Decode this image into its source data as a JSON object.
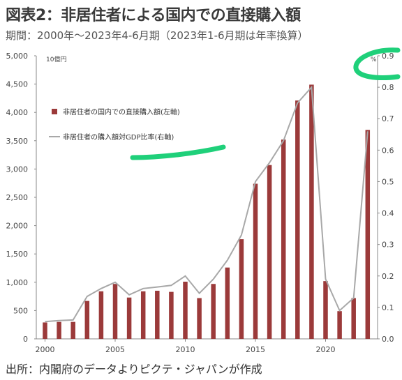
{
  "header": {
    "title": "図表2：非居住者による国内での直接購入額",
    "subtitle": "期間：2000年～2023年4-6月期（2023年1-6月期は年率換算）"
  },
  "footer": {
    "source": "出所：内閣府のデータよりピクテ・ジャパンが作成"
  },
  "colors": {
    "bar": "#9b3a3a",
    "line": "#a8a8a8",
    "highlight": "#1fd07a"
  },
  "chart_data": {
    "type": "bar",
    "categories": [
      "2000",
      "2001",
      "2002",
      "2003",
      "2004",
      "2005",
      "2006",
      "2007",
      "2008",
      "2009",
      "2010",
      "2011",
      "2012",
      "2013",
      "2014",
      "2015",
      "2016",
      "2017",
      "2018",
      "2019",
      "2020",
      "2021",
      "2022",
      "2023"
    ],
    "series": [
      {
        "name": "非居住者の国内での直接購入額(左軸)",
        "type": "bar",
        "axis": "left",
        "values": [
          290,
          300,
          300,
          670,
          840,
          970,
          730,
          840,
          850,
          830,
          1010,
          720,
          970,
          1260,
          1760,
          2740,
          3070,
          3520,
          4210,
          4490,
          1020,
          490,
          720,
          3690
        ]
      },
      {
        "name": "非居住者の購入額対GDP比率(右軸)",
        "type": "line",
        "axis": "right",
        "values": [
          0.055,
          0.058,
          0.06,
          0.135,
          0.16,
          0.18,
          0.14,
          0.16,
          0.165,
          0.17,
          0.2,
          0.145,
          0.19,
          0.25,
          0.33,
          0.5,
          0.56,
          0.63,
          0.75,
          0.8,
          0.19,
          0.09,
          0.13,
          0.66
        ]
      }
    ],
    "ylim_left": [
      0,
      5000
    ],
    "yticks_left": [
      "0",
      "500",
      "1,000",
      "1,500",
      "2,000",
      "2,500",
      "3,000",
      "3,500",
      "4,000",
      "4,500",
      "5,000"
    ],
    "ylabel_left": "10億円",
    "ylim_right": [
      0,
      0.9
    ],
    "yticks_right": [
      "0.0",
      "0.1",
      "0.2",
      "0.3",
      "0.4",
      "0.5",
      "0.6",
      "0.7",
      "0.8",
      "0.9"
    ],
    "ylabel_right": "%",
    "xticks": [
      "2000",
      "2005",
      "2010",
      "2015",
      "2020"
    ],
    "legend_position": "top-left",
    "grid": false
  }
}
